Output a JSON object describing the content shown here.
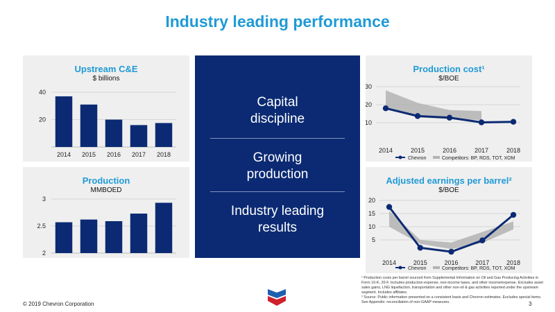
{
  "title": "Industry leading performance",
  "center": {
    "items": [
      "Capital\ndiscipline",
      "Growing\nproduction",
      "Industry leading\nresults"
    ]
  },
  "footnotes": [
    "¹ Production costs per barrel sourced from Supplemental Information on Oil and Gas Producing Activities in Form 10-K, 20-F. Includes production expense, non-income taxes, and other income/expense. Excludes asset sales gains, LNG liquefaction, transportation and other non-oil & gas activities reported under the upstream segment. Includes affiliates.",
    "² Source: Public information presented on a consistent basis and Chevron estimates. Excludes special items. See Appendix: reconciliation of non-GAAP measures."
  ],
  "copyright": "© 2019 Chevron Corporation",
  "page_number": "3",
  "colors": {
    "accent": "#1f9ad6",
    "navy": "#0b2a73",
    "bar": "#0b2a73",
    "band": "#b3b3b3",
    "panel": "#efefef"
  },
  "chart_data": [
    {
      "id": "upstream",
      "type": "bar",
      "title": "Upstream C&E",
      "subtitle": "$ billions",
      "categories": [
        "2014",
        "2015",
        "2016",
        "2017",
        "2018"
      ],
      "values": [
        37,
        31,
        20,
        16,
        17.5
      ],
      "ylim": [
        0,
        40
      ],
      "yticks": [
        "20",
        "40"
      ],
      "ytick_values": [
        20,
        40
      ],
      "grid": true
    },
    {
      "id": "production",
      "type": "bar",
      "title": "Production",
      "subtitle": "MMBOED",
      "categories": [
        "2014",
        "2015",
        "2016",
        "2017",
        "2018"
      ],
      "values": [
        2.57,
        2.62,
        2.59,
        2.73,
        2.93
      ],
      "ylim": [
        2,
        3
      ],
      "yticks": [
        "2",
        "2.5",
        "3"
      ],
      "ytick_values": [
        2,
        2.5,
        3
      ],
      "grid": true
    },
    {
      "id": "cost",
      "type": "line",
      "title": "Production cost¹",
      "subtitle": "$/BOE",
      "categories": [
        "2014",
        "2015",
        "2016",
        "2017",
        "2018"
      ],
      "series": [
        {
          "name": "Chevron",
          "values": [
            18,
            13.7,
            12.8,
            10.2,
            10.5
          ]
        }
      ],
      "band": {
        "name": "Competitors: BP, RDS, TOT, XOM",
        "low": [
          18,
          13,
          12,
          11.5
        ],
        "high": [
          28,
          21,
          17,
          16.5
        ],
        "x_index": [
          0,
          1,
          2,
          3
        ]
      },
      "ylim": [
        0,
        30
      ],
      "yticks": [
        "10",
        "20",
        "30"
      ],
      "ytick_values": [
        10,
        20,
        30
      ],
      "legend": [
        "Chevron",
        "Competitors: BP, RDS, TOT, XOM"
      ],
      "grid": true
    },
    {
      "id": "earnings",
      "type": "line",
      "title": "Adjusted earnings per barrel²",
      "subtitle": "$/BOE",
      "categories": [
        "2014",
        "2015",
        "2016",
        "2017",
        "2018"
      ],
      "series": [
        {
          "name": "Chevron",
          "values": [
            17.5,
            2,
            0.5,
            4.8,
            14.5
          ]
        }
      ],
      "band": {
        "name": "Competitors: BP, RDS, TOT, XOM",
        "low": [
          10,
          3.5,
          1.5,
          3.8,
          9
        ],
        "high": [
          16,
          5,
          4,
          8,
          12
        ],
        "x_index": [
          0,
          1,
          2,
          3,
          4
        ]
      },
      "ylim": [
        0,
        20
      ],
      "yticks": [
        "5",
        "10",
        "15",
        "20"
      ],
      "ytick_values": [
        5,
        10,
        15,
        20
      ],
      "legend": [
        "Chevron",
        "Competitors: BP, RDS, TOT, XOM"
      ],
      "grid": true
    }
  ]
}
